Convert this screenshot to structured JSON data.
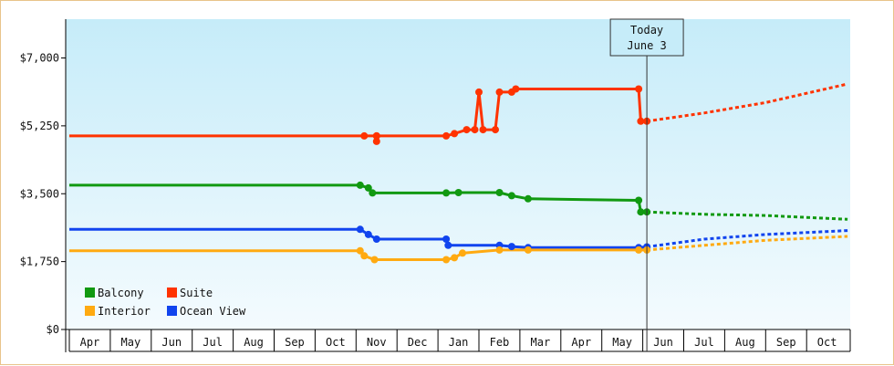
{
  "chart_data": {
    "type": "line",
    "title": "",
    "xlabel": "",
    "ylabel": "",
    "ylim": [
      0,
      8000
    ],
    "y_ticks": [
      0,
      1750,
      3500,
      5250,
      7000
    ],
    "y_tick_labels": [
      "$0",
      "$1,750",
      "$3,500",
      "$5,250",
      "$7,000"
    ],
    "x_tick_labels": [
      "Apr",
      "May",
      "Jun",
      "Jul",
      "Aug",
      "Sep",
      "Oct",
      "Nov",
      "Dec",
      "Jan",
      "Feb",
      "Mar",
      "Apr",
      "May",
      "Jun",
      "Jul",
      "Aug",
      "Sep",
      "Oct"
    ],
    "x_range_months": [
      0,
      19
    ],
    "background": "light blue gradient",
    "legend": {
      "placement": "bottom-left",
      "entries": [
        "Balcony",
        "Suite",
        "Interior",
        "Ocean View"
      ]
    },
    "today_marker": {
      "line1": "Today",
      "line2": "June 3",
      "x": 14.1
    },
    "series": [
      {
        "name": "Suite",
        "color": "#ff3300",
        "points": [
          [
            0,
            4990
          ],
          [
            7.2,
            4990
          ],
          [
            7.5,
            4990
          ],
          [
            7.5,
            4850
          ],
          [
            7.5,
            4990
          ],
          [
            9.2,
            4990
          ],
          [
            9.4,
            5050
          ],
          [
            9.7,
            5150
          ],
          [
            9.9,
            5150
          ],
          [
            10.0,
            6120
          ],
          [
            10.1,
            5150
          ],
          [
            10.4,
            5150
          ],
          [
            10.5,
            6120
          ],
          [
            10.8,
            6120
          ],
          [
            10.9,
            6200
          ],
          [
            13.9,
            6200
          ],
          [
            13.95,
            5370
          ],
          [
            14.1,
            5370
          ]
        ],
        "forecast": [
          [
            14.1,
            5370
          ],
          [
            15.5,
            5580
          ],
          [
            17.0,
            5850
          ],
          [
            19.0,
            6330
          ]
        ]
      },
      {
        "name": "Balcony",
        "color": "#119911",
        "points": [
          [
            0,
            3720
          ],
          [
            7.1,
            3720
          ],
          [
            7.3,
            3650
          ],
          [
            7.4,
            3520
          ],
          [
            9.2,
            3520
          ],
          [
            9.5,
            3530
          ],
          [
            10.5,
            3530
          ],
          [
            10.8,
            3450
          ],
          [
            11.2,
            3370
          ],
          [
            13.9,
            3330
          ],
          [
            13.95,
            3030
          ],
          [
            14.1,
            3030
          ]
        ],
        "forecast": [
          [
            14.1,
            3030
          ],
          [
            15.5,
            2970
          ],
          [
            17.0,
            2940
          ],
          [
            19.0,
            2840
          ]
        ]
      },
      {
        "name": "Ocean View",
        "color": "#1144ee",
        "points": [
          [
            0,
            2580
          ],
          [
            7.1,
            2580
          ],
          [
            7.3,
            2450
          ],
          [
            7.5,
            2330
          ],
          [
            9.2,
            2330
          ],
          [
            9.25,
            2170
          ],
          [
            10.5,
            2170
          ],
          [
            10.8,
            2140
          ],
          [
            11.2,
            2110
          ],
          [
            13.9,
            2110
          ],
          [
            14.1,
            2130
          ]
        ],
        "forecast": [
          [
            14.1,
            2130
          ],
          [
            15.5,
            2330
          ],
          [
            17.0,
            2450
          ],
          [
            19.0,
            2550
          ]
        ]
      },
      {
        "name": "Interior",
        "color": "#ffaa11",
        "points": [
          [
            0,
            2030
          ],
          [
            7.1,
            2030
          ],
          [
            7.2,
            1900
          ],
          [
            7.45,
            1800
          ],
          [
            9.2,
            1800
          ],
          [
            9.4,
            1850
          ],
          [
            9.6,
            1970
          ],
          [
            10.5,
            2050
          ],
          [
            11.2,
            2050
          ],
          [
            13.9,
            2050
          ],
          [
            14.1,
            2050
          ]
        ],
        "forecast": [
          [
            14.1,
            2050
          ],
          [
            15.5,
            2170
          ],
          [
            17.0,
            2300
          ],
          [
            19.0,
            2400
          ]
        ]
      }
    ]
  }
}
